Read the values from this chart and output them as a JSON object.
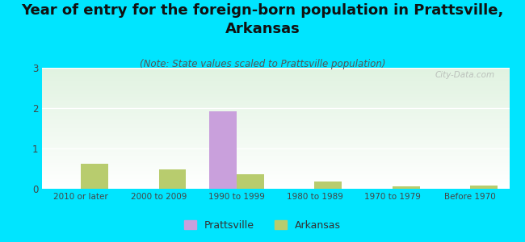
{
  "title": "Year of entry for the foreign-born population in Prattsville,\nArkansas",
  "subtitle": "(Note: State values scaled to Prattsville population)",
  "categories": [
    "2010 or later",
    "2000 to 2009",
    "1990 to 1999",
    "1980 to 1989",
    "1970 to 1979",
    "Before 1970"
  ],
  "prattsville_values": [
    0,
    0,
    1.93,
    0,
    0,
    0
  ],
  "arkansas_values": [
    0.62,
    0.48,
    0.37,
    0.18,
    0.07,
    0.08
  ],
  "prattsville_color": "#c9a0dc",
  "arkansas_color": "#b8cc6e",
  "ylim": [
    0,
    3
  ],
  "yticks": [
    0,
    1,
    2,
    3
  ],
  "background_color": "#00e5ff",
  "plot_bg_top": "#e8f5e9",
  "plot_bg_bottom": "#ffffff",
  "title_fontsize": 13,
  "subtitle_fontsize": 8.5,
  "bar_width": 0.35,
  "watermark": "City-Data.com"
}
